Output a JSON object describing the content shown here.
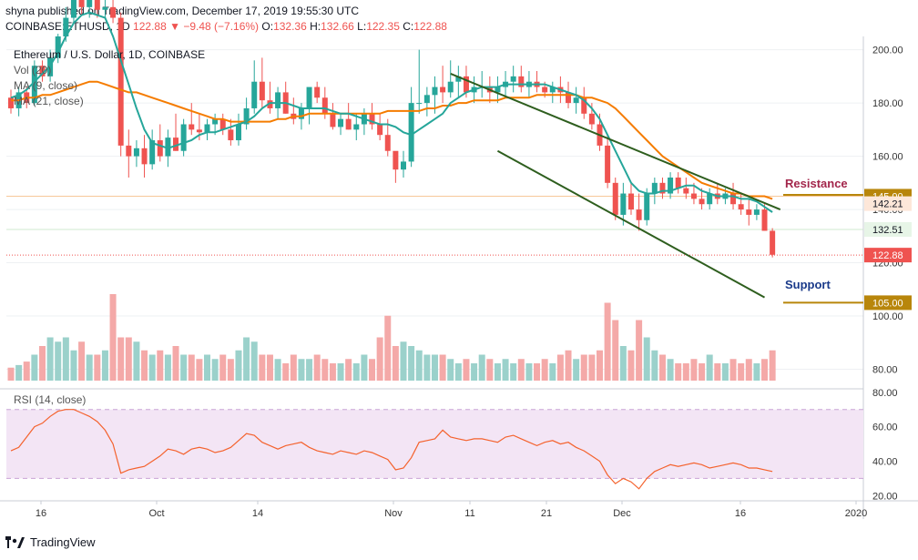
{
  "header": {
    "publisher_line": "shyna published on TradingView.com, December 17, 2019 19:55:30 UTC",
    "symbol": "COINBASE:ETHUSD, 1D",
    "last": "122.88",
    "arrow": "▼",
    "change": "−9.48 (−7.16%)",
    "o_label": "O:",
    "o": "132.36",
    "h_label": "H:",
    "h": "132.66",
    "l_label": "L:",
    "l": "122.35",
    "c_label": "C:",
    "c": "122.88"
  },
  "legend": {
    "title": "Ethereum / U.S. Dollar, 1D, COINBASE",
    "vol": "Vol (20)",
    "ma9": "MA (9, close)",
    "ma21": "MA (21, close)"
  },
  "annotations": {
    "resistance": "Resistance",
    "support": "Support"
  },
  "price_tags": [
    {
      "text": "145.00",
      "price": 145,
      "bg": "#b8860b",
      "fg": "#ffffff"
    },
    {
      "text": "142.21",
      "price": 142.21,
      "bg": "#fde7d9",
      "fg": "#131722"
    },
    {
      "text": "132.51",
      "price": 132.51,
      "bg": "#e7f5e7",
      "fg": "#131722"
    },
    {
      "text": "122.88",
      "price": 122.88,
      "bg": "#ef5350",
      "fg": "#ffffff"
    },
    {
      "text": "105.00",
      "price": 105,
      "bg": "#b8860b",
      "fg": "#ffffff"
    }
  ],
  "footer": {
    "brand": "TradingView"
  },
  "colors": {
    "up": "#26a69a",
    "down": "#ef5350",
    "ma9": "#26a69a",
    "ma21": "#f57c00",
    "trend": "#2e5e1e",
    "rsi": "#f4622d",
    "rsi_bg": "#f3e5f5",
    "level": "#b8860b"
  },
  "chart_data": [
    {
      "type": "candlestick",
      "title": "Ethereum / U.S. Dollar, 1D, COINBASE",
      "x_ticks": [
        "16",
        "Oct",
        "14",
        "Nov",
        "11",
        "21",
        "Dec",
        "16",
        "2020"
      ],
      "y_ticks": [
        200,
        180,
        160,
        140,
        120,
        100,
        80
      ],
      "ylim": [
        73,
        205
      ],
      "candles_ohlc": [
        [
          182,
          185,
          176,
          178
        ],
        [
          178,
          186,
          175,
          184
        ],
        [
          184,
          186,
          178,
          180
        ],
        [
          180,
          196,
          179,
          194
        ],
        [
          194,
          196,
          188,
          190
        ],
        [
          190,
          200,
          188,
          197
        ],
        [
          197,
          206,
          195,
          205
        ],
        [
          205,
          216,
          203,
          212
        ],
        [
          212,
          222,
          210,
          220
        ],
        [
          220,
          224,
          213,
          216
        ],
        [
          216,
          222,
          212,
          219
        ],
        [
          219,
          221,
          212,
          215
        ],
        [
          215,
          220,
          212,
          216
        ],
        [
          216,
          219,
          210,
          212
        ],
        [
          212,
          214,
          160,
          164
        ],
        [
          164,
          170,
          152,
          160
        ],
        [
          160,
          166,
          156,
          163
        ],
        [
          163,
          168,
          152,
          157
        ],
        [
          157,
          170,
          155,
          166
        ],
        [
          166,
          172,
          158,
          160
        ],
        [
          160,
          170,
          156,
          167
        ],
        [
          167,
          176,
          162,
          162
        ],
        [
          162,
          174,
          160,
          172
        ],
        [
          172,
          180,
          168,
          170
        ],
        [
          170,
          176,
          166,
          169
        ],
        [
          169,
          174,
          166,
          172
        ],
        [
          172,
          176,
          168,
          174
        ],
        [
          174,
          176,
          168,
          170
        ],
        [
          170,
          174,
          164,
          166
        ],
        [
          166,
          176,
          164,
          172
        ],
        [
          172,
          182,
          170,
          178
        ],
        [
          178,
          196,
          176,
          188
        ],
        [
          188,
          197,
          178,
          181
        ],
        [
          181,
          188,
          176,
          178
        ],
        [
          178,
          186,
          174,
          184
        ],
        [
          184,
          188,
          176,
          176
        ],
        [
          176,
          182,
          172,
          174
        ],
        [
          174,
          180,
          170,
          178
        ],
        [
          178,
          184,
          172,
          186
        ],
        [
          186,
          188,
          180,
          182
        ],
        [
          182,
          186,
          174,
          176
        ],
        [
          176,
          180,
          170,
          171
        ],
        [
          171,
          176,
          168,
          174
        ],
        [
          174,
          180,
          170,
          170
        ],
        [
          170,
          176,
          166,
          172
        ],
        [
          172,
          178,
          168,
          176
        ],
        [
          176,
          180,
          170,
          172
        ],
        [
          172,
          176,
          166,
          168
        ],
        [
          168,
          174,
          160,
          162
        ],
        [
          162,
          158,
          150,
          155
        ],
        [
          155,
          162,
          152,
          158
        ],
        [
          158,
          186,
          156,
          180
        ],
        [
          180,
          200,
          176,
          180
        ],
        [
          180,
          186,
          175,
          183
        ],
        [
          183,
          190,
          176,
          186
        ],
        [
          186,
          194,
          180,
          184
        ],
        [
          184,
          196,
          182,
          188
        ],
        [
          188,
          194,
          182,
          190
        ],
        [
          190,
          194,
          182,
          184
        ],
        [
          184,
          190,
          180,
          186
        ],
        [
          186,
          192,
          182,
          186
        ],
        [
          186,
          190,
          180,
          184
        ],
        [
          184,
          190,
          180,
          186
        ],
        [
          186,
          192,
          182,
          188
        ],
        [
          188,
          194,
          184,
          190
        ],
        [
          190,
          194,
          184,
          186
        ],
        [
          186,
          192,
          182,
          188
        ],
        [
          188,
          192,
          184,
          186
        ],
        [
          186,
          188,
          182,
          184
        ],
        [
          184,
          188,
          180,
          186
        ],
        [
          186,
          190,
          180,
          184
        ],
        [
          184,
          188,
          178,
          180
        ],
        [
          180,
          186,
          176,
          182
        ],
        [
          182,
          186,
          174,
          176
        ],
        [
          176,
          180,
          170,
          172
        ],
        [
          172,
          176,
          162,
          164
        ],
        [
          164,
          168,
          148,
          150
        ],
        [
          150,
          152,
          136,
          138
        ],
        [
          138,
          150,
          134,
          146
        ],
        [
          146,
          150,
          138,
          140
        ],
        [
          140,
          146,
          132,
          136
        ],
        [
          136,
          148,
          134,
          146
        ],
        [
          146,
          152,
          142,
          150
        ],
        [
          150,
          152,
          144,
          146
        ],
        [
          146,
          154,
          144,
          152
        ],
        [
          152,
          154,
          146,
          148
        ],
        [
          148,
          152,
          144,
          146
        ],
        [
          146,
          150,
          142,
          144
        ],
        [
          144,
          148,
          140,
          142
        ],
        [
          142,
          148,
          140,
          146
        ],
        [
          146,
          150,
          142,
          144
        ],
        [
          144,
          148,
          142,
          146
        ],
        [
          146,
          150,
          140,
          142
        ],
        [
          142,
          146,
          138,
          140
        ],
        [
          140,
          144,
          134,
          138
        ],
        [
          138,
          142,
          136,
          140
        ],
        [
          140,
          142,
          132,
          132
        ],
        [
          132,
          133,
          122,
          123
        ]
      ],
      "ma9_values": [
        182,
        183,
        185,
        188,
        191,
        194,
        199,
        205,
        210,
        213,
        214,
        213,
        212,
        205,
        196,
        187,
        178,
        170,
        165,
        164,
        163,
        164,
        165,
        166,
        168,
        169,
        169,
        170,
        171,
        172,
        173,
        175,
        178,
        180,
        180,
        180,
        179,
        178,
        178,
        178,
        178,
        177,
        176,
        176,
        175,
        174,
        173,
        172,
        172,
        171,
        169,
        168,
        170,
        172,
        174,
        176,
        180,
        182,
        184,
        185,
        186,
        186,
        186,
        187,
        187,
        187,
        187,
        187,
        187,
        186,
        185,
        184,
        183,
        181,
        178,
        174,
        168,
        162,
        156,
        150,
        147,
        146,
        146,
        147,
        147,
        148,
        149,
        149,
        147,
        146,
        145,
        145,
        145,
        144,
        144,
        143,
        141,
        139
      ],
      "ma21_values": [
        181,
        181,
        182,
        182,
        183,
        183,
        184,
        185,
        186,
        187,
        188,
        188,
        187,
        186,
        185,
        184,
        184,
        183,
        182,
        181,
        180,
        179,
        178,
        177,
        176,
        175,
        174,
        174,
        173,
        173,
        173,
        173,
        173,
        173,
        174,
        174,
        175,
        175,
        176,
        176,
        176,
        176,
        176,
        176,
        176,
        176,
        176,
        176,
        177,
        177,
        177,
        177,
        177,
        178,
        178,
        179,
        179,
        180,
        180,
        181,
        181,
        181,
        181,
        182,
        182,
        182,
        182,
        183,
        183,
        183,
        183,
        183,
        183,
        182,
        182,
        181,
        180,
        178,
        175,
        172,
        169,
        166,
        163,
        160,
        158,
        156,
        154,
        152,
        150,
        149,
        148,
        147,
        146,
        146,
        145,
        145,
        145,
        144
      ],
      "volume_relative": [
        0.15,
        0.18,
        0.22,
        0.3,
        0.4,
        0.5,
        0.45,
        0.5,
        0.35,
        0.45,
        0.3,
        0.3,
        0.35,
        1.0,
        0.5,
        0.5,
        0.45,
        0.35,
        0.3,
        0.35,
        0.3,
        0.4,
        0.3,
        0.3,
        0.25,
        0.3,
        0.25,
        0.3,
        0.25,
        0.35,
        0.5,
        0.45,
        0.3,
        0.3,
        0.25,
        0.2,
        0.3,
        0.25,
        0.25,
        0.3,
        0.25,
        0.2,
        0.2,
        0.25,
        0.2,
        0.3,
        0.25,
        0.5,
        0.75,
        0.4,
        0.45,
        0.4,
        0.35,
        0.3,
        0.3,
        0.3,
        0.25,
        0.2,
        0.25,
        0.2,
        0.3,
        0.25,
        0.2,
        0.25,
        0.2,
        0.25,
        0.2,
        0.2,
        0.25,
        0.2,
        0.3,
        0.35,
        0.25,
        0.3,
        0.3,
        0.35,
        0.9,
        0.7,
        0.4,
        0.35,
        0.7,
        0.5,
        0.35,
        0.3,
        0.25,
        0.2,
        0.2,
        0.25,
        0.2,
        0.3,
        0.2,
        0.2,
        0.25,
        0.2,
        0.25,
        0.2,
        0.25,
        0.35
      ],
      "levels": {
        "resistance": 145.0,
        "support": 105.0,
        "last": 122.88
      },
      "trendlines": [
        {
          "from": [
            56,
            191
          ],
          "to": [
            98,
            140
          ]
        },
        {
          "from": [
            62,
            162
          ],
          "to": [
            96,
            107
          ]
        }
      ]
    },
    {
      "type": "line",
      "title": "RSI (14, close)",
      "y_ticks": [
        80,
        60,
        40,
        20
      ],
      "ylim": [
        17,
        82
      ],
      "bands": [
        30,
        70
      ],
      "values": [
        46,
        48,
        54,
        60,
        62,
        66,
        69,
        70,
        70,
        68,
        66,
        63,
        58,
        50,
        33,
        35,
        36,
        37,
        40,
        43,
        47,
        46,
        44,
        47,
        48,
        47,
        45,
        46,
        48,
        52,
        56,
        55,
        51,
        49,
        47,
        49,
        50,
        51,
        48,
        46,
        45,
        44,
        46,
        45,
        44,
        46,
        45,
        43,
        41,
        35,
        36,
        42,
        51,
        52,
        53,
        58,
        54,
        53,
        52,
        53,
        53,
        52,
        51,
        54,
        55,
        53,
        51,
        49,
        51,
        52,
        50,
        51,
        48,
        46,
        43,
        40,
        32,
        27,
        30,
        28,
        24,
        30,
        34,
        36,
        38,
        37,
        38,
        39,
        38,
        36,
        37,
        38,
        39,
        38,
        36,
        36,
        35,
        34
      ]
    }
  ]
}
